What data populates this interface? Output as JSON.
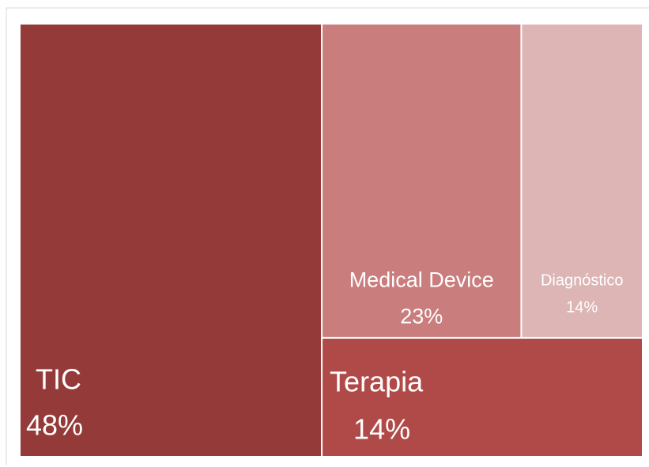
{
  "chart_data": {
    "type": "treemap",
    "categories": [
      "TIC",
      "Medical Device",
      "Diagnóstico",
      "Terapia"
    ],
    "values": [
      48,
      23,
      14,
      14
    ],
    "value_labels": [
      "48%",
      "23%",
      "14%",
      "14%"
    ],
    "colors": [
      "#943b3a",
      "#c97d7c",
      "#ddb5b5",
      "#b04a48"
    ]
  }
}
